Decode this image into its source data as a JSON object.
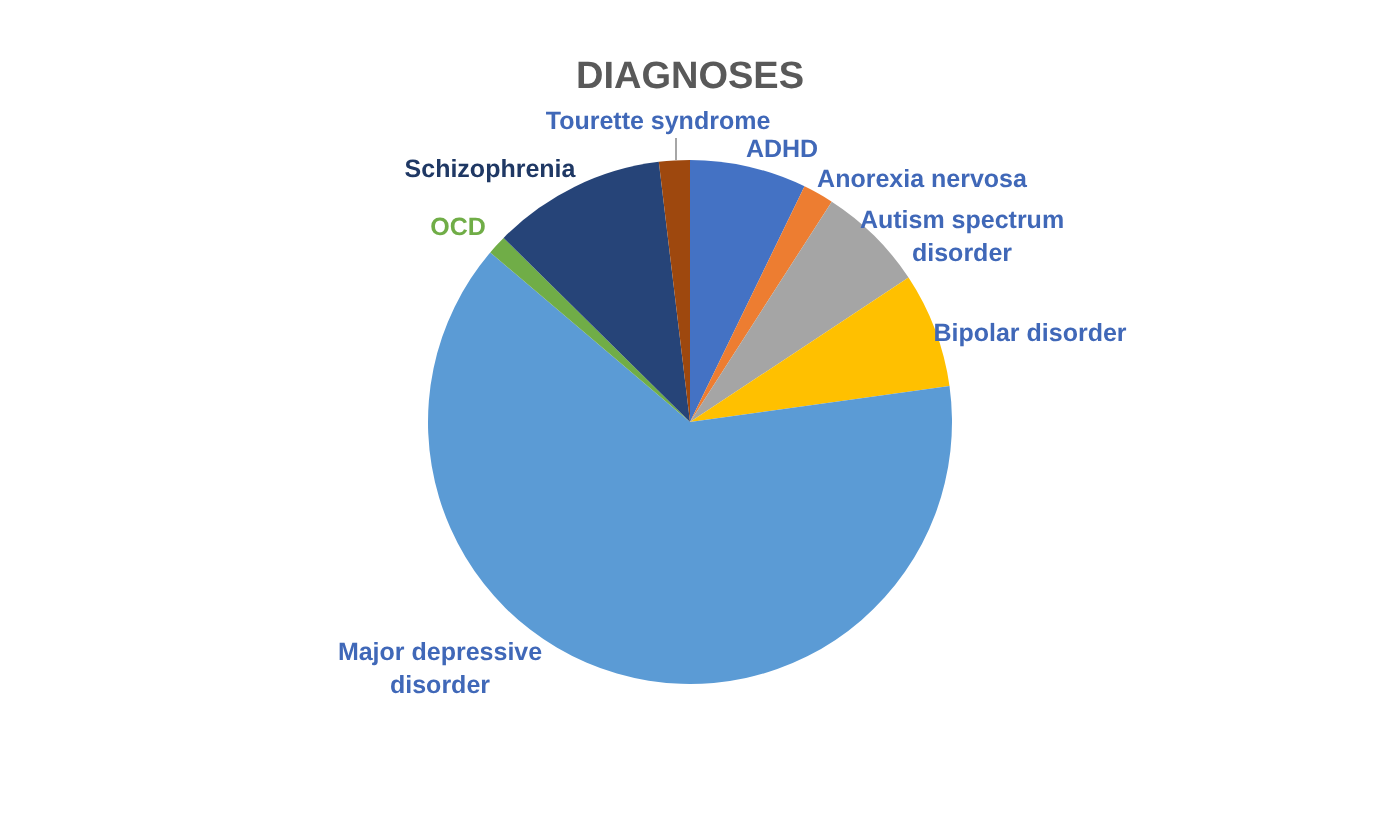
{
  "chart_data": {
    "type": "pie",
    "title": "DIAGNOSES",
    "categories": [
      "ADHD",
      "Anorexia nervosa",
      "Autism spectrum disorder",
      "Bipolar disorder",
      "Major depressive disorder",
      "OCD",
      "Schizophrenia",
      "Tourette syndrome"
    ],
    "values": [
      7.2,
      1.9,
      6.6,
      7.1,
      63.4,
      1.2,
      10.7,
      1.9
    ],
    "colors": [
      "#4472c4",
      "#ed7d31",
      "#a5a5a5",
      "#ffc000",
      "#5b9bd5",
      "#70ad47",
      "#264478",
      "#9e480e"
    ]
  }
}
